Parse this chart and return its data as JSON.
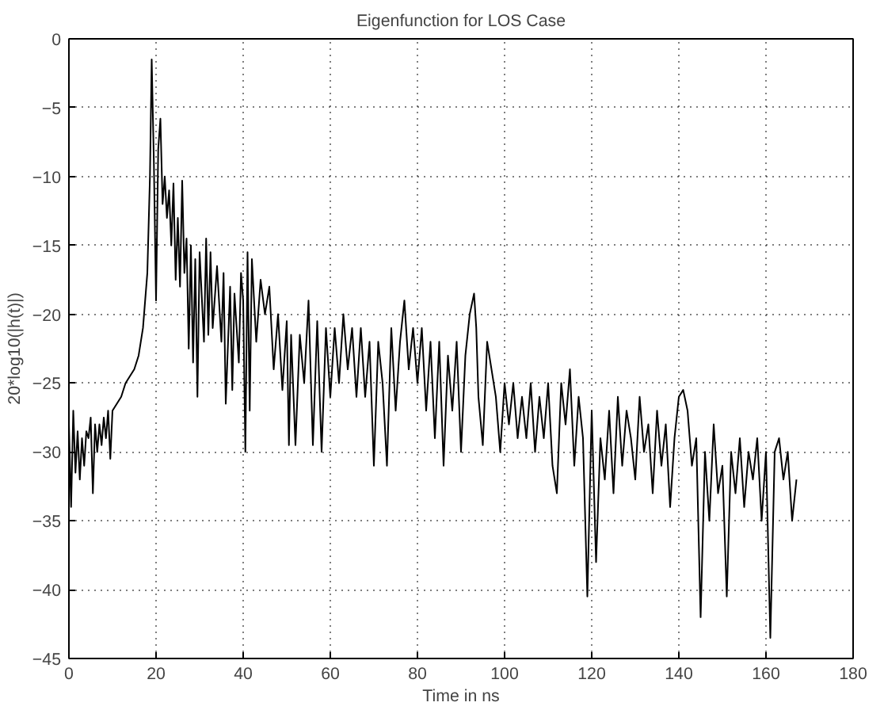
{
  "chart_data": {
    "type": "line",
    "title": "Eigenfunction for LOS Case",
    "xlabel": "Time in ns",
    "ylabel": "20*log10(|h(t)|)",
    "xlim": [
      0,
      180
    ],
    "ylim": [
      -45,
      0
    ],
    "xticks": [
      0,
      20,
      40,
      60,
      80,
      100,
      120,
      140,
      160,
      180
    ],
    "yticks": [
      -45,
      -40,
      -35,
      -30,
      -25,
      -20,
      -15,
      -10,
      -5,
      0
    ],
    "grid": true,
    "line_style": "solid",
    "series": [
      {
        "color": "#000000",
        "x": [
          0,
          0.5,
          1,
          1.5,
          2,
          2.5,
          3,
          3.5,
          4,
          4.5,
          5,
          5.5,
          6,
          6.5,
          7,
          7.5,
          8,
          8.5,
          9,
          9.5,
          10,
          11,
          12,
          13,
          14,
          15,
          16,
          17,
          18,
          18.6,
          19,
          19.5,
          20,
          20.5,
          21,
          21.5,
          22,
          22.5,
          23,
          23.5,
          24,
          24.5,
          25,
          25.5,
          26,
          26.5,
          27,
          27.5,
          28,
          28.5,
          29,
          29.5,
          30,
          31,
          31.5,
          32,
          32.5,
          33,
          34,
          35,
          35.5,
          36,
          37,
          37.5,
          38,
          39,
          39.5,
          40,
          40.5,
          41,
          41.5,
          42,
          43,
          44,
          45,
          46,
          47,
          48,
          49,
          50,
          50.5,
          51,
          52,
          53,
          54,
          55,
          56,
          57,
          58,
          59,
          60,
          61,
          62,
          63,
          64,
          65,
          66,
          67,
          68,
          69,
          70,
          71,
          72,
          73,
          74,
          75,
          76,
          77,
          78,
          79,
          80,
          81,
          82,
          83,
          84,
          85,
          86,
          87,
          88,
          89,
          90,
          91,
          92,
          93,
          93.5,
          94,
          95,
          96,
          97,
          98,
          99,
          100,
          101,
          102,
          103,
          104,
          105,
          106,
          107,
          108,
          109,
          110,
          111,
          112,
          113,
          114,
          115,
          116,
          117,
          118,
          119,
          120,
          121,
          122,
          123,
          124,
          125,
          126,
          127,
          128,
          129,
          130,
          131,
          132,
          133,
          134,
          135,
          136,
          137,
          138,
          139,
          140,
          141,
          142,
          143,
          144,
          145,
          146,
          147,
          148,
          149,
          150,
          151,
          152,
          153,
          154,
          155,
          156,
          157,
          158,
          159,
          160,
          161,
          162,
          163,
          164,
          165,
          166,
          167
        ],
        "values": [
          -28,
          -34,
          -27,
          -31.5,
          -28.5,
          -32,
          -29,
          -31,
          -28.5,
          -29,
          -27.5,
          -33,
          -28,
          -30,
          -28,
          -29.5,
          -27.5,
          -29,
          -27,
          -30.5,
          -27,
          -26.5,
          -26,
          -25,
          -24.5,
          -24,
          -23,
          -21,
          -17,
          -10,
          -1.5,
          -9,
          -19,
          -8,
          -5.8,
          -12,
          -10,
          -13,
          -11,
          -15,
          -10.5,
          -17.5,
          -13,
          -18,
          -10.3,
          -17,
          -14.5,
          -22.5,
          -15,
          -23.5,
          -16,
          -26,
          -15.5,
          -22,
          -14.5,
          -21.5,
          -15.5,
          -21,
          -16.5,
          -22,
          -17,
          -26.5,
          -18,
          -25.5,
          -18.5,
          -23.5,
          -17,
          -19,
          -30,
          -15.5,
          -27,
          -16,
          -22,
          -17.5,
          -20,
          -18,
          -24,
          -20,
          -25.5,
          -20.5,
          -29.5,
          -21.5,
          -29.5,
          -21.5,
          -25,
          -19,
          -29.5,
          -20.5,
          -30,
          -21,
          -26,
          -21,
          -25,
          -20,
          -24,
          -21,
          -26,
          -21,
          -26,
          -22,
          -31,
          -22,
          -25,
          -31,
          -21,
          -27,
          -22,
          -19,
          -24,
          -21,
          -25,
          -21,
          -27,
          -22,
          -29,
          -22,
          -31,
          -23,
          -27,
          -22,
          -30,
          -23,
          -20,
          -18.5,
          -21,
          -26,
          -29.5,
          -22,
          -24,
          -26,
          -30,
          -25,
          -28,
          -25,
          -29,
          -26,
          -29,
          -25,
          -30,
          -26,
          -29,
          -25,
          -31,
          -33,
          -25,
          -28,
          -24,
          -31,
          -26,
          -29,
          -40.5,
          -27,
          -38,
          -29,
          -32,
          -27,
          -33,
          -26,
          -31,
          -27,
          -29,
          -32,
          -26,
          -30,
          -28,
          -33,
          -27,
          -31,
          -28,
          -34,
          -29,
          -26,
          -25.5,
          -27,
          -31,
          -29,
          -42,
          -30,
          -35,
          -28,
          -33,
          -31,
          -40.5,
          -30,
          -33,
          -29,
          -34,
          -30,
          -32,
          -29,
          -35,
          -30,
          -43.5,
          -30,
          -29,
          -32,
          -30,
          -35,
          -32
        ]
      }
    ]
  }
}
